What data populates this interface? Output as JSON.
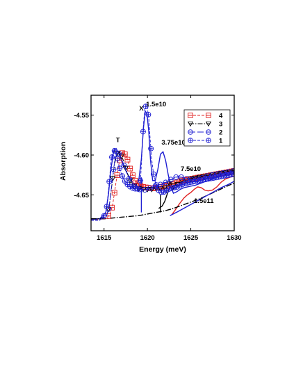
{
  "chart_data": {
    "type": "line",
    "xlabel": "Energy (meV)",
    "ylabel": "Absorption",
    "xlim": [
      1613.5,
      1630
    ],
    "ylim": [
      -4.695,
      -4.525
    ],
    "xticks": [
      1615,
      1620,
      1625,
      1630
    ],
    "xtick_labels": [
      "1615",
      "1620",
      "1625",
      "1630"
    ],
    "yticks": [
      -4.55,
      -4.6,
      -4.65
    ],
    "ytick_labels": [
      "-4.55",
      "-4.60",
      "-4.65"
    ],
    "grid": false,
    "legend_position": "top-right",
    "colors": {
      "red": "#e02020",
      "black": "#000000",
      "blue": "#1e1ed2"
    },
    "series": [
      {
        "name": "4",
        "color": "#e02020",
        "dash": "4,2",
        "marker": "square",
        "x": [
          1613.5,
          1614.5,
          1615.3,
          1615.7,
          1616.0,
          1616.3,
          1616.6,
          1616.9,
          1617.2,
          1617.6,
          1618.0,
          1618.5,
          1619.0,
          1619.5,
          1620.0,
          1620.5,
          1621.0,
          1621.5,
          1622.0,
          1622.5,
          1623.0,
          1623.5,
          1624.0,
          1624.5,
          1625.0,
          1625.5,
          1626.0,
          1626.5,
          1627.0,
          1627.5,
          1628.0,
          1628.5,
          1629.0,
          1629.5,
          1630.0
        ],
        "y": [
          -4.681,
          -4.681,
          -4.679,
          -4.674,
          -4.662,
          -4.64,
          -4.618,
          -4.601,
          -4.596,
          -4.602,
          -4.617,
          -4.631,
          -4.637,
          -4.64,
          -4.641,
          -4.642,
          -4.641,
          -4.64,
          -4.639,
          -4.638,
          -4.636,
          -4.634,
          -4.632,
          -4.631,
          -4.63,
          -4.629,
          -4.628,
          -4.627,
          -4.626,
          -4.625,
          -4.624,
          -4.623,
          -4.622,
          -4.621,
          -4.62
        ],
        "marker_x": [
          1615.5,
          1615.9,
          1616.2,
          1616.5,
          1616.8,
          1617.1,
          1617.4,
          1617.7,
          1618.0,
          1618.3,
          1618.6,
          1618.9,
          1619.2,
          1619.5,
          1619.8,
          1620.1,
          1620.4,
          1620.7,
          1621.0,
          1621.3,
          1621.6,
          1621.9,
          1622.2,
          1622.5,
          1622.8,
          1623.1,
          1623.4,
          1623.7,
          1624.0,
          1624.3,
          1624.6,
          1624.9,
          1625.2,
          1625.5,
          1625.8,
          1626.1,
          1626.4,
          1626.7,
          1627.0,
          1627.3,
          1627.6,
          1627.9,
          1628.2,
          1628.5,
          1628.8,
          1629.1,
          1629.4,
          1629.7,
          1630.0
        ]
      },
      {
        "name": "3",
        "color": "#000000",
        "dash": "7,2,1.5,2",
        "marker": "triangle-down",
        "x": [
          1613.5,
          1614.5,
          1615.3,
          1615.6,
          1615.9,
          1616.2,
          1616.5,
          1616.8,
          1617.2,
          1617.6,
          1618.0,
          1618.5,
          1619.0,
          1619.5,
          1620.0,
          1620.5,
          1621.0,
          1621.5,
          1622.0,
          1622.3,
          1622.6,
          1622.9,
          1623.2,
          1623.6,
          1624.0,
          1624.5,
          1625.0,
          1625.5,
          1626.0,
          1626.5,
          1627.0,
          1627.5,
          1628.0,
          1628.5,
          1629.0,
          1629.5,
          1630.0
        ],
        "y": [
          -4.68,
          -4.68,
          -4.676,
          -4.664,
          -4.638,
          -4.612,
          -4.598,
          -4.597,
          -4.606,
          -4.62,
          -4.632,
          -4.639,
          -4.642,
          -4.643,
          -4.643,
          -4.643,
          -4.642,
          -4.642,
          -4.641,
          -4.641,
          -4.633,
          -4.638,
          -4.639,
          -4.636,
          -4.633,
          -4.632,
          -4.63,
          -4.629,
          -4.628,
          -4.627,
          -4.626,
          -4.625,
          -4.624,
          -4.623,
          -4.622,
          -4.621,
          -4.62
        ],
        "marker_x": [
          1615.5,
          1616.0,
          1616.5,
          1617.0,
          1617.5,
          1618.0,
          1618.5,
          1619.0,
          1619.5,
          1620.0,
          1620.5,
          1621.0,
          1621.5,
          1622.0,
          1622.5,
          1623.0,
          1623.5,
          1624.0,
          1624.5,
          1625.0,
          1625.5,
          1626.0,
          1626.5,
          1627.0,
          1627.5,
          1628.0,
          1628.5,
          1629.0,
          1629.5,
          1630.0
        ]
      },
      {
        "name": "2",
        "color": "#1e1ed2",
        "dash": "9,3",
        "marker": "circle-dash",
        "x": [
          1613.5,
          1614.5,
          1615.3,
          1615.6,
          1615.9,
          1616.2,
          1616.5,
          1616.8,
          1617.2,
          1617.6,
          1618.0,
          1618.5,
          1619.0,
          1619.5,
          1620.0,
          1620.5,
          1621.0,
          1621.5,
          1622.0,
          1622.5,
          1623.0,
          1623.5,
          1624.0,
          1624.5,
          1625.0,
          1625.5,
          1626.0,
          1626.5,
          1627.0,
          1627.5,
          1628.0,
          1628.5,
          1629.0,
          1629.5,
          1630.0
        ],
        "y": [
          -4.681,
          -4.681,
          -4.677,
          -4.663,
          -4.636,
          -4.609,
          -4.596,
          -4.599,
          -4.61,
          -4.622,
          -4.632,
          -4.639,
          -4.643,
          -4.644,
          -4.643,
          -4.641,
          -4.639,
          -4.637,
          -4.635,
          -4.632,
          -4.629,
          -4.627,
          -4.628,
          -4.63,
          -4.631,
          -4.631,
          -4.63,
          -4.628,
          -4.626,
          -4.625,
          -4.624,
          -4.623,
          -4.622,
          -4.621,
          -4.62
        ],
        "marker_x": [
          1615.5,
          1616.1,
          1616.7,
          1617.3,
          1617.9,
          1618.5,
          1619.1,
          1619.7,
          1620.3,
          1620.9,
          1621.5,
          1622.1,
          1622.7,
          1623.3,
          1623.9,
          1624.5,
          1625.1,
          1625.7,
          1626.3,
          1626.9,
          1627.5,
          1628.1,
          1628.7,
          1629.3,
          1629.9
        ]
      },
      {
        "name": "1",
        "color": "#1e1ed2",
        "dash": "4,2",
        "marker": "circle-plus",
        "x": [
          1613.5,
          1614.5,
          1615.2,
          1615.5,
          1615.8,
          1616.1,
          1616.4,
          1616.7,
          1617.0,
          1617.3,
          1617.6,
          1617.9,
          1618.2,
          1618.5,
          1618.8,
          1619.0,
          1619.2,
          1619.4,
          1619.55,
          1619.7,
          1619.85,
          1620.0,
          1620.15,
          1620.3,
          1620.5,
          1620.7,
          1620.9,
          1621.1,
          1621.4,
          1621.7,
          1622.0,
          1622.3,
          1622.6,
          1623.0,
          1623.4,
          1623.8,
          1624.2,
          1624.6,
          1625.0,
          1625.5,
          1626.0,
          1626.5,
          1627.0,
          1627.5,
          1628.0,
          1628.5,
          1629.0,
          1629.5,
          1630.0
        ],
        "y": [
          -4.682,
          -4.682,
          -4.674,
          -4.646,
          -4.608,
          -4.592,
          -4.6,
          -4.613,
          -4.624,
          -4.631,
          -4.636,
          -4.639,
          -4.641,
          -4.642,
          -4.643,
          -4.642,
          -4.632,
          -4.592,
          -4.56,
          -4.543,
          -4.537,
          -4.542,
          -4.553,
          -4.578,
          -4.606,
          -4.624,
          -4.634,
          -4.641,
          -4.646,
          -4.647,
          -4.646,
          -4.644,
          -4.642,
          -4.641,
          -4.64,
          -4.638,
          -4.636,
          -4.635,
          -4.634,
          -4.633,
          -4.632,
          -4.631,
          -4.63,
          -4.629,
          -4.628,
          -4.627,
          -4.626,
          -4.625,
          -4.624
        ],
        "marker_x": [
          1615.0,
          1615.3,
          1615.6,
          1615.9,
          1616.2,
          1616.5,
          1616.8,
          1617.1,
          1617.4,
          1617.7,
          1618.0,
          1618.3,
          1618.6,
          1618.9,
          1619.2,
          1619.5,
          1619.8,
          1620.1,
          1620.4,
          1620.7,
          1621.0,
          1621.3,
          1621.6,
          1621.9,
          1622.2,
          1622.5,
          1622.8,
          1623.1,
          1623.4,
          1623.7,
          1624.0,
          1624.3,
          1624.6,
          1624.9,
          1625.2,
          1625.5,
          1625.8,
          1626.1,
          1626.4,
          1626.7,
          1627.0,
          1627.3,
          1627.6,
          1627.9,
          1628.2,
          1628.5,
          1628.8,
          1629.1,
          1629.4,
          1629.7,
          1630.0
        ]
      }
    ],
    "calculated_curves": [
      {
        "color": "#1e1ed2",
        "x": [
          1613.5,
          1614.5,
          1615.2,
          1615.5,
          1615.8,
          1616.1,
          1616.4,
          1616.7,
          1617.0,
          1617.4,
          1617.8,
          1618.2,
          1618.6,
          1619.0,
          1619.3,
          1619.55,
          1619.75,
          1619.95,
          1620.15,
          1620.35,
          1620.6,
          1620.9,
          1621.2,
          1621.5,
          1621.8,
          1622.1,
          1622.4,
          1622.7,
          1623.0,
          1623.4,
          1623.8,
          1624.2,
          1624.6,
          1625.0,
          1625.5,
          1626.0,
          1626.5,
          1627.0,
          1627.5,
          1628.0,
          1628.5,
          1629.0,
          1629.5,
          1630.0
        ],
        "y": [
          -4.68,
          -4.68,
          -4.672,
          -4.65,
          -4.617,
          -4.596,
          -4.592,
          -4.598,
          -4.607,
          -4.617,
          -4.626,
          -4.633,
          -4.638,
          -4.632,
          -4.605,
          -4.565,
          -4.545,
          -4.548,
          -4.57,
          -4.606,
          -4.632,
          -4.632,
          -4.618,
          -4.599,
          -4.596,
          -4.607,
          -4.625,
          -4.64,
          -4.648,
          -4.646,
          -4.643,
          -4.641,
          -4.64,
          -4.639,
          -4.638,
          -4.636,
          -4.634,
          -4.632,
          -4.63,
          -4.628,
          -4.626,
          -4.624,
          -4.622,
          -4.62
        ]
      },
      {
        "color": "#1e1ed2",
        "x": [
          1619.3,
          1619.3
        ],
        "y": [
          -4.628,
          -4.672
        ]
      },
      {
        "color": "#000000",
        "x": [
          1621.3,
          1621.7,
          1622.0,
          1622.25,
          1622.45,
          1622.65,
          1622.9,
          1623.2,
          1623.6,
          1624.0,
          1624.5,
          1625.0,
          1625.5,
          1626.0,
          1626.5,
          1627.0,
          1627.5,
          1628.0,
          1628.5,
          1629.0,
          1629.5,
          1630.0
        ],
        "y": [
          -4.667,
          -4.664,
          -4.658,
          -4.65,
          -4.643,
          -4.64,
          -4.643,
          -4.641,
          -4.638,
          -4.634,
          -4.631,
          -4.629,
          -4.628,
          -4.627,
          -4.626,
          -4.625,
          -4.624,
          -4.623,
          -4.622,
          -4.621,
          -4.62,
          -4.619
        ]
      },
      {
        "color": "#000000",
        "x": [
          1621.5,
          1621.5
        ],
        "y": [
          -4.65,
          -4.672
        ]
      },
      {
        "color": "#e02020",
        "x": [
          1622.8,
          1623.2,
          1623.7,
          1624.2,
          1624.6,
          1625.0,
          1625.4,
          1625.8,
          1626.2,
          1626.6,
          1627.0,
          1627.5,
          1628.0,
          1628.5,
          1629.0,
          1629.5,
          1630.0
        ],
        "y": [
          -4.675,
          -4.669,
          -4.661,
          -4.654,
          -4.65,
          -4.647,
          -4.643,
          -4.64,
          -4.641,
          -4.644,
          -4.645,
          -4.644,
          -4.64,
          -4.634,
          -4.63,
          -4.628,
          -4.626
        ]
      },
      {
        "color": "#000000",
        "dash": "8,2,1.5,2",
        "x": [
          1613.5,
          1615.0,
          1616.0,
          1617.0,
          1618.0,
          1619.0,
          1620.0,
          1621.0,
          1622.0,
          1623.0,
          1624.0,
          1625.0,
          1626.0,
          1627.0,
          1628.0,
          1629.0,
          1630.0
        ],
        "y": [
          -4.68,
          -4.68,
          -4.679,
          -4.678,
          -4.677,
          -4.676,
          -4.674,
          -4.672,
          -4.67,
          -4.667,
          -4.663,
          -4.659,
          -4.655,
          -4.65,
          -4.645,
          -4.64,
          -4.635
        ]
      },
      {
        "color": "#1e1ed2",
        "x": [
          1622.6,
          1623.5,
          1624.5,
          1625.5,
          1626.5,
          1627.5,
          1628.5,
          1629.3,
          1630.0
        ],
        "y": [
          -4.676,
          -4.671,
          -4.665,
          -4.659,
          -4.653,
          -4.647,
          -4.641,
          -4.637,
          -4.633
        ]
      }
    ],
    "annotations": [
      {
        "text": "T",
        "x": 1616.6,
        "y": -4.584
      },
      {
        "text": "X",
        "x": 1619.3,
        "y": -4.544
      },
      {
        "text": "1.5e10",
        "x": 1621.0,
        "y": -4.539
      },
      {
        "text": "3.75e10",
        "x": 1623.0,
        "y": -4.587
      },
      {
        "text": "7.5e10",
        "x": 1625.0,
        "y": -4.62
      },
      {
        "text": "1.5e11",
        "x": 1626.5,
        "y": -4.66
      }
    ]
  }
}
